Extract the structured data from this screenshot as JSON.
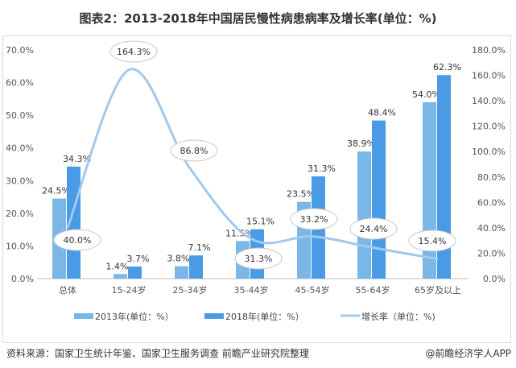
{
  "title": "图表2：2013-2018年中国居民慢性病患病率及增长率(单位：%)",
  "footer": {
    "source": "资料来源：国家卫生统计年鉴、国家卫生服务调查 前瞻产业研究院整理",
    "brand": "@前瞻经济学人APP"
  },
  "chart_data": {
    "type": "bar",
    "title": "图表2：2013-2018年中国居民慢性病患病率及增长率(单位：%)",
    "categories": [
      "总体",
      "15-24岁",
      "25-34岁",
      "35-44岁",
      "45-54岁",
      "55-64岁",
      "65岁及以上"
    ],
    "series": [
      {
        "name": "2013年(单位：%）",
        "type": "bar",
        "axis": "left",
        "color": "#7ab6e6",
        "values": [
          24.5,
          1.4,
          3.8,
          11.5,
          23.5,
          38.9,
          54.0
        ],
        "labels": [
          "24.5%",
          "1.4%",
          "3.8%",
          "11.5%",
          "23.5%",
          "38.9%",
          "54.0%"
        ]
      },
      {
        "name": "2018年(单位：%）",
        "type": "bar",
        "axis": "left",
        "color": "#4a9be6",
        "values": [
          34.3,
          3.7,
          7.1,
          15.1,
          31.3,
          48.4,
          62.3
        ],
        "labels": [
          "34.3%",
          "3.7%",
          "7.1%",
          "15.1%",
          "31.3%",
          "48.4%",
          "62.3%"
        ]
      },
      {
        "name": "增长率（单位：%)",
        "type": "line",
        "axis": "right",
        "smooth": true,
        "color": "#a3c8ec",
        "values": [
          40.0,
          164.3,
          86.8,
          31.3,
          33.2,
          24.4,
          15.4
        ],
        "labels": [
          "40.0%",
          "164.3%",
          "86.8%",
          "31.3%",
          "33.2%",
          "24.4%",
          "15.4%"
        ]
      }
    ],
    "y_left": {
      "range": [
        0,
        70
      ],
      "ticks": [
        "0.0%",
        "10.0%",
        "20.0%",
        "30.0%",
        "40.0%",
        "50.0%",
        "60.0%",
        "70.0%"
      ]
    },
    "y_right": {
      "range": [
        0,
        180
      ],
      "ticks": [
        "0.0%",
        "20.0%",
        "40.0%",
        "60.0%",
        "80.0%",
        "100.0%",
        "120.0%",
        "140.0%",
        "160.0%",
        "180.0%"
      ]
    },
    "grid": false,
    "legend": "bottom"
  }
}
